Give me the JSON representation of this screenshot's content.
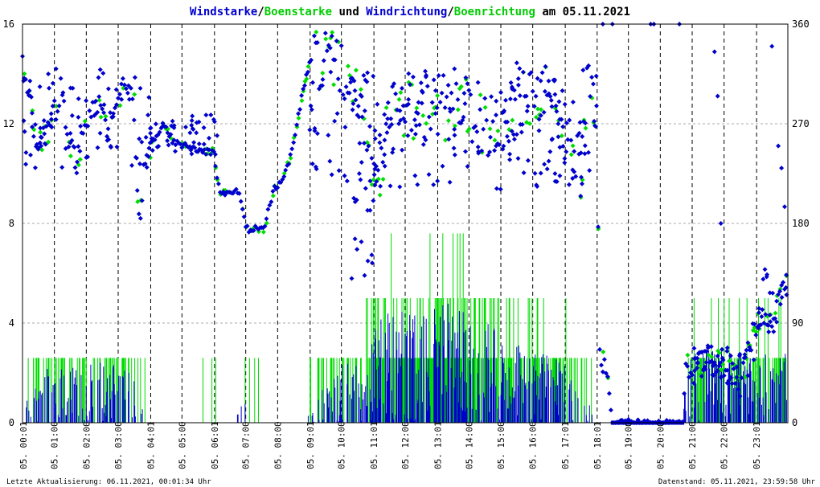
{
  "title_parts": [
    {
      "text": "Windstarke",
      "color": "#0000cc"
    },
    {
      "text": "/",
      "color": "#000000"
    },
    {
      "text": "Boenstarke",
      "color": "#00cc00"
    },
    {
      "text": " und ",
      "color": "#000000"
    },
    {
      "text": "Windrichtung",
      "color": "#0000cc"
    },
    {
      "text": "/",
      "color": "#000000"
    },
    {
      "text": "Boenrichtung",
      "color": "#00cc00"
    },
    {
      "text": " am 05.11.2021",
      "color": "#000000"
    }
  ],
  "footer": {
    "left": "Letzte Aktualisierung: 06.11.2021, 00:01:34 Uhr",
    "right": "Datenstand: 05.11.2021, 23:59:58 Uhr"
  },
  "chart_data": {
    "type": "line",
    "colors": {
      "wind": "#0000cc",
      "gust": "#00dd00",
      "grid": "#aaaaaa",
      "hour_line": "#000000"
    },
    "y_left": {
      "ticks": [
        "0",
        "4",
        "8",
        "12",
        "16"
      ],
      "lim": [
        0,
        16
      ]
    },
    "y_right": {
      "ticks": [
        "0",
        "90",
        "180",
        "270",
        "360"
      ],
      "lim": [
        0,
        360
      ]
    },
    "x_lim_hours": [
      0,
      24
    ],
    "x_tick_labels": [
      "05. 00:01",
      "05. 01:00",
      "05. 02:00",
      "05. 03:00",
      "05. 04:01",
      "05. 05:00",
      "05. 06:01",
      "05. 07:00",
      "05. 08:00",
      "05. 09:01",
      "05. 10:00",
      "05. 11:01",
      "05. 12:00",
      "05. 13:01",
      "05. 14:00",
      "05. 15:00",
      "05. 16:00",
      "05. 17:01",
      "05. 18:01",
      "05. 19:00",
      "05. 20:00",
      "05. 21:00",
      "05. 22:00",
      "05. 23:01"
    ],
    "x_tick_hours": [
      0.02,
      1,
      2,
      3,
      4.02,
      5,
      6.02,
      7,
      8,
      9.02,
      10,
      11.02,
      12,
      13.02,
      14,
      15,
      16,
      17.02,
      18.02,
      19,
      20,
      21,
      22,
      23.02
    ],
    "speed_activity": [
      [
        0,
        0.2
      ],
      [
        0.5,
        0.7
      ],
      [
        1,
        0.7
      ],
      [
        1.5,
        0.7
      ],
      [
        2,
        0.7
      ],
      [
        2.5,
        0.8
      ],
      [
        3,
        0.7
      ],
      [
        3.5,
        0.6
      ],
      [
        4,
        0
      ],
      [
        4.5,
        0
      ],
      [
        5,
        0
      ],
      [
        5.5,
        0
      ],
      [
        6,
        0.2
      ],
      [
        6.5,
        0
      ],
      [
        7,
        0.3
      ],
      [
        7.5,
        0
      ],
      [
        8,
        0
      ],
      [
        8.5,
        0
      ],
      [
        9,
        0.1
      ],
      [
        9.5,
        0.6
      ],
      [
        10,
        0.8
      ],
      [
        10.5,
        0.7
      ],
      [
        11,
        1.2
      ],
      [
        11.5,
        1.4
      ],
      [
        12,
        1.5
      ],
      [
        12.5,
        1.3
      ],
      [
        13,
        1.4
      ],
      [
        13.5,
        1.5
      ],
      [
        14,
        1.3
      ],
      [
        14.5,
        1.3
      ],
      [
        15,
        1.1
      ],
      [
        15.5,
        1.0
      ],
      [
        16,
        1.0
      ],
      [
        16.5,
        0.9
      ],
      [
        17,
        0.8
      ],
      [
        17.5,
        0.5
      ],
      [
        18,
        0
      ],
      [
        19,
        0
      ],
      [
        20,
        0
      ],
      [
        20.7,
        0
      ],
      [
        20.8,
        0.7
      ],
      [
        21,
        0.9
      ],
      [
        21.5,
        0.9
      ],
      [
        22,
        0.9
      ],
      [
        22.5,
        0.8
      ],
      [
        23,
        0.8
      ],
      [
        23.5,
        0.9
      ],
      [
        24,
        0.9
      ]
    ],
    "direction_track": [
      [
        0,
        325
      ],
      [
        0.2,
        300
      ],
      [
        0.4,
        260
      ],
      [
        0.6,
        255
      ],
      [
        0.8,
        260
      ],
      [
        1,
        280
      ],
      [
        1.2,
        300
      ],
      [
        1.4,
        260
      ],
      [
        1.5,
        250
      ],
      [
        1.7,
        235
      ],
      [
        1.9,
        255
      ],
      [
        2.1,
        280
      ],
      [
        2.3,
        290
      ],
      [
        2.5,
        275
      ],
      [
        2.7,
        265
      ],
      [
        2.9,
        280
      ],
      [
        3.1,
        300
      ],
      [
        3.3,
        305
      ],
      [
        3.5,
        285
      ],
      [
        3.6,
        210
      ],
      [
        3.7,
        190
      ],
      [
        3.8,
        235
      ],
      [
        4,
        250
      ],
      [
        4.2,
        260
      ],
      [
        4.4,
        270
      ],
      [
        4.7,
        255
      ],
      [
        5,
        250
      ],
      [
        5.3,
        250
      ],
      [
        5.6,
        245
      ],
      [
        6,
        245
      ],
      [
        6.1,
        220
      ],
      [
        6.2,
        208
      ],
      [
        6.5,
        208
      ],
      [
        6.8,
        208
      ],
      [
        7,
        175
      ],
      [
        7.2,
        175
      ],
      [
        7.4,
        175
      ],
      [
        7.6,
        175
      ],
      [
        7.7,
        190
      ],
      [
        7.9,
        212
      ],
      [
        8,
        215
      ],
      [
        8.2,
        225
      ],
      [
        8.4,
        240
      ],
      [
        8.6,
        270
      ],
      [
        8.8,
        300
      ],
      [
        9,
        325
      ],
      [
        9.5,
        327
      ],
      [
        9.8,
        325
      ],
      [
        10.3,
        305
      ],
      [
        10.5,
        300
      ],
      [
        10.7,
        295
      ],
      [
        11,
        220
      ],
      [
        11.3,
        240
      ],
      [
        11.6,
        290
      ],
      [
        12,
        280
      ],
      [
        12.5,
        285
      ],
      [
        13,
        290
      ],
      [
        13.5,
        280
      ],
      [
        14,
        285
      ],
      [
        14.5,
        265
      ],
      [
        15,
        270
      ],
      [
        15.5,
        280
      ],
      [
        16,
        300
      ],
      [
        16.5,
        290
      ],
      [
        17,
        260
      ],
      [
        17.5,
        230
      ],
      [
        17.7,
        295
      ],
      [
        18,
        290
      ],
      [
        18.1,
        65
      ],
      [
        18.2,
        55
      ],
      [
        18.4,
        25
      ],
      [
        18.5,
        0
      ],
      [
        19,
        0
      ],
      [
        19.5,
        0
      ],
      [
        20,
        0
      ],
      [
        20.5,
        0
      ],
      [
        20.7,
        0
      ],
      [
        20.8,
        55
      ],
      [
        21,
        45
      ],
      [
        21.5,
        60
      ],
      [
        22,
        50
      ],
      [
        22.5,
        35
      ],
      [
        23,
        90
      ],
      [
        23.5,
        95
      ],
      [
        23.7,
        110
      ],
      [
        23.9,
        130
      ],
      [
        24,
        135
      ]
    ],
    "direction_scatter_zones": [
      [
        0,
        4,
        230,
        320
      ],
      [
        4,
        6.2,
        240,
        280
      ],
      [
        9,
        18,
        210,
        320
      ],
      [
        10.3,
        11,
        130,
        210
      ],
      [
        21,
        23,
        40,
        70
      ],
      [
        23,
        24,
        80,
        140
      ]
    ],
    "direction_outliers": [
      [
        15.5,
        325
      ],
      [
        16.7,
        225
      ],
      [
        16.8,
        270
      ],
      [
        17.3,
        245
      ],
      [
        18.2,
        360
      ],
      [
        18.5,
        360
      ],
      [
        19.7,
        360
      ],
      [
        19.8,
        360
      ],
      [
        20.6,
        360
      ],
      [
        21.7,
        335
      ],
      [
        21.8,
        295
      ],
      [
        21.9,
        180
      ],
      [
        23.5,
        340
      ],
      [
        23.7,
        250
      ],
      [
        23.8,
        230
      ],
      [
        23.9,
        195
      ]
    ]
  }
}
